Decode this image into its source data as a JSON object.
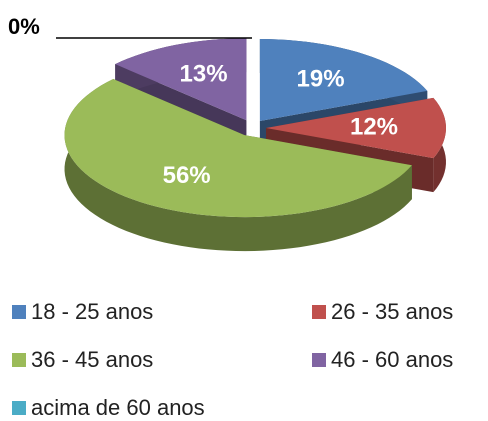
{
  "chart_data": {
    "type": "pie",
    "categories": [
      "18 - 25 anos",
      "26 - 35 anos",
      "36 - 45 anos",
      "46 - 60 anos",
      "acima de 60 anos"
    ],
    "values": [
      19,
      12,
      56,
      13,
      0
    ],
    "value_labels": [
      "19%",
      "12%",
      "56%",
      "13%",
      "0%"
    ],
    "colors": [
      "#4f81bd",
      "#c0504d",
      "#9bbb59",
      "#8064a2",
      "#4bacc6"
    ],
    "legend": "bottom"
  }
}
